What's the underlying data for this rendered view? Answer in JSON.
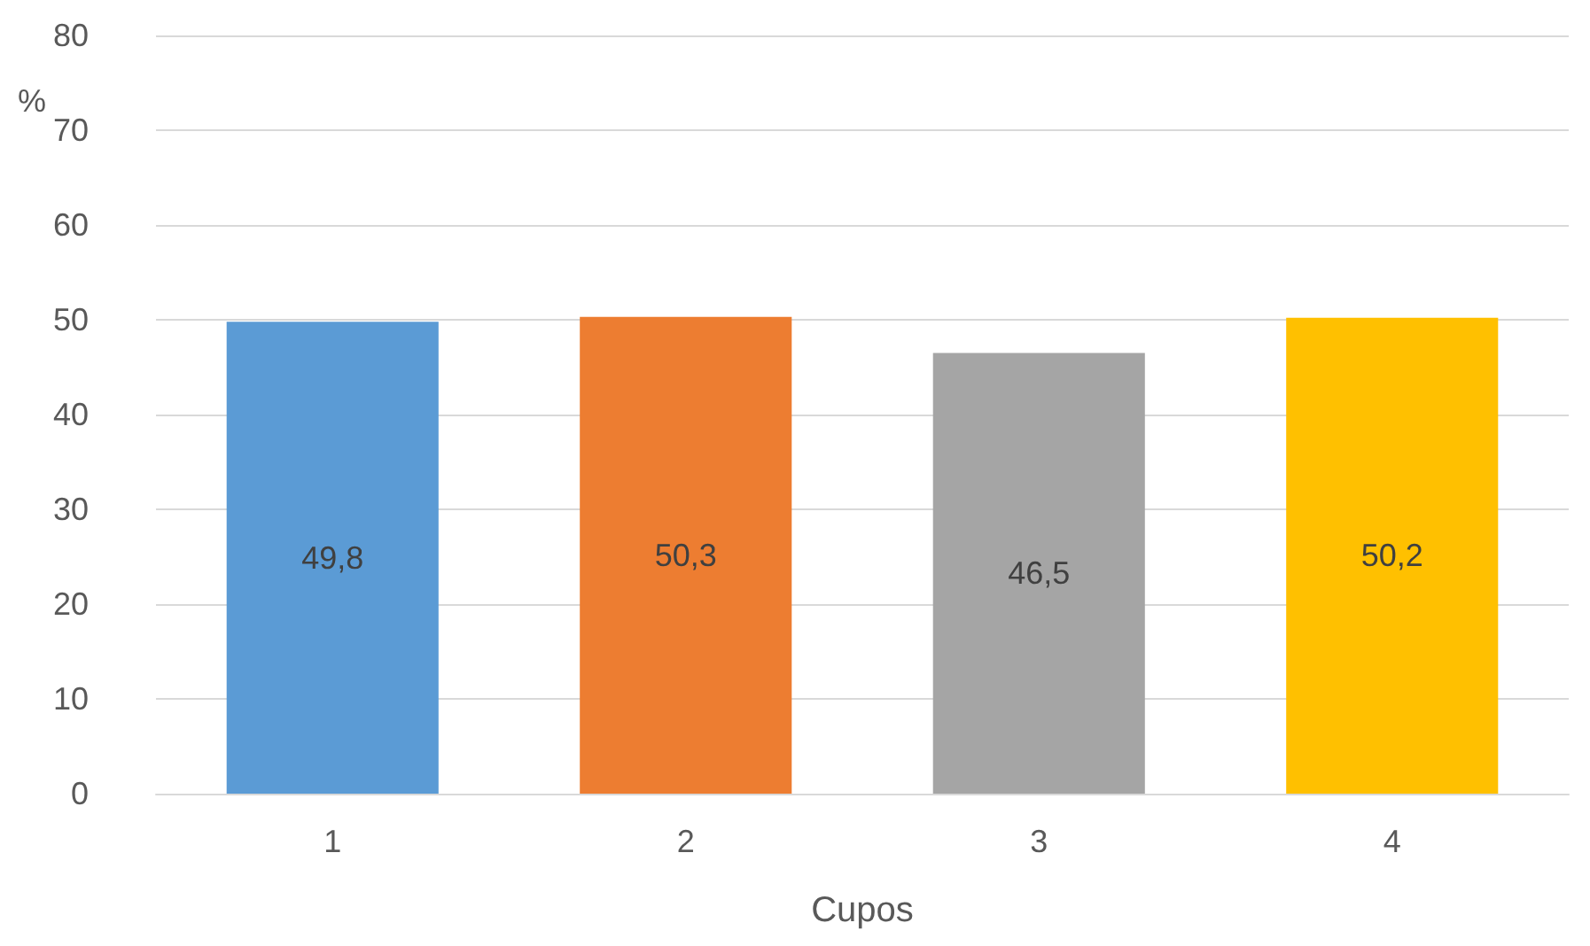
{
  "chart_data": {
    "type": "bar",
    "xlabel": "Cupos",
    "ylabel": "%",
    "categories": [
      "1",
      "2",
      "3",
      "4"
    ],
    "values": [
      49.8,
      50.3,
      46.5,
      50.2
    ],
    "value_labels": [
      "49,8",
      "50,3",
      "46,5",
      "50,2"
    ],
    "colors": [
      "#5b9bd5",
      "#ed7d31",
      "#a5a5a5",
      "#ffc000"
    ],
    "ylim": [
      0,
      80
    ],
    "yticks": [
      0,
      10,
      20,
      30,
      40,
      50,
      60,
      70,
      80
    ],
    "grid": "y"
  }
}
